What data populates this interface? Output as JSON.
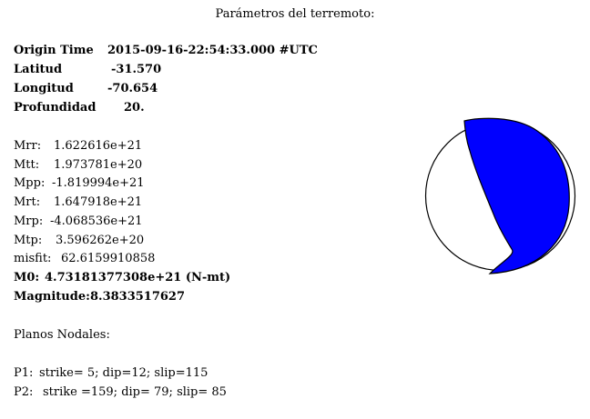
{
  "title": "Parámetros del terremoto:",
  "origin": {
    "origin_time_label": "Origin Time",
    "origin_time_value": "2015-09-16-22:54:33.000 #UTC",
    "latitud_label": "Latitud",
    "latitud_value": "-31.570",
    "longitud_label": "Longitud",
    "longitud_value": "-70.654",
    "profundidad_label": "Profundidad",
    "profundidad_value": "20."
  },
  "moment": {
    "mrr_label": "Mrr:",
    "mrr_value": "1.622616e+21",
    "mtt_label": "Mtt:",
    "mtt_value": "1.973781e+20",
    "mpp_label": "Mpp:",
    "mpp_value": "-1.819994e+21",
    "mrt_label": "Mrt:",
    "mrt_value": "1.647918e+21",
    "mrp_label": "Mrp:",
    "mrp_value": "-4.068536e+21",
    "mtp_label": "Mtp:",
    "mtp_value": "3.596262e+20",
    "misfit_label": "misfit:",
    "misfit_value": "62.6159910858",
    "m0_label": "M0:",
    "m0_value": "4.73181377308e+21 (N-mt)",
    "magnitude_label": "Magnitude:",
    "magnitude_value": "8.3833517627"
  },
  "planos": {
    "heading": "Planos Nodales:",
    "p1_label": "P1:",
    "p1_value": "strike= 5; dip=12; slip=115",
    "p2_label": "P2:",
    "p2_value": "strike =159; dip= 79; slip= 85"
  },
  "beachball": {
    "compression_color": "#0000ff",
    "dilatation_color": "#ffffff",
    "outline_color": "#000000"
  }
}
